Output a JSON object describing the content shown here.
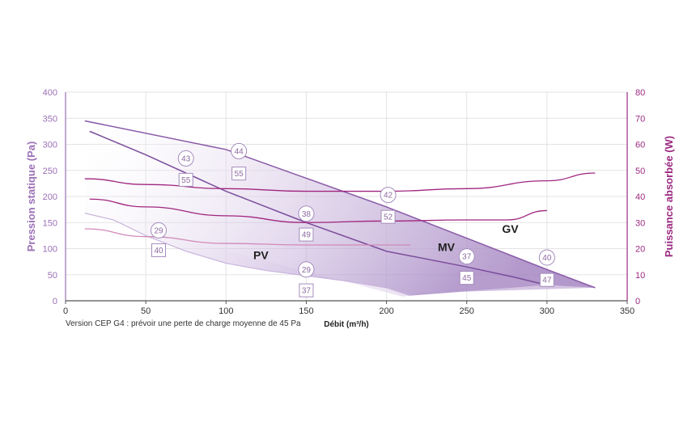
{
  "chart_data": {
    "type": "line",
    "xlabel": "Débit (m³/h)",
    "ylabel_left": "Pression statique (Pa)",
    "ylabel_right": "Puissance absorbée (W)",
    "xlim": [
      0,
      350
    ],
    "ylim_left": [
      0,
      400
    ],
    "ylim_right": [
      0,
      80
    ],
    "x_ticks": [
      "0",
      "50",
      "100",
      "150",
      "200",
      "250",
      "300",
      "350"
    ],
    "y_left_ticks": [
      "0",
      "50",
      "100",
      "150",
      "200",
      "250",
      "300",
      "350",
      "400"
    ],
    "y_right_ticks": [
      "0",
      "10",
      "20",
      "30",
      "40",
      "50",
      "60",
      "70",
      "80"
    ],
    "grid": true,
    "note": "Version CEP G4 : prévoir une perte de charge moyenne de 45 Pa",
    "zones": [
      {
        "label": "PV",
        "label_at": [
          117,
          80
        ]
      },
      {
        "label": "MV",
        "label_at": [
          232,
          95
        ]
      },
      {
        "label": "GV",
        "label_at": [
          272,
          130
        ]
      }
    ],
    "pressure_curves": [
      {
        "zone": "GV",
        "points": [
          [
            12,
            345
          ],
          [
            100,
            290
          ],
          [
            150,
            235
          ],
          [
            200,
            180
          ],
          [
            250,
            120
          ],
          [
            300,
            60
          ],
          [
            330,
            25
          ]
        ]
      },
      {
        "zone": "MV",
        "points": [
          [
            15,
            325
          ],
          [
            50,
            280
          ],
          [
            100,
            210
          ],
          [
            150,
            150
          ],
          [
            200,
            95
          ],
          [
            250,
            65
          ],
          [
            280,
            45
          ],
          [
            300,
            30
          ]
        ]
      },
      {
        "zone": "PV",
        "points": [
          [
            12,
            168
          ],
          [
            30,
            155
          ],
          [
            50,
            125
          ],
          [
            75,
            95
          ],
          [
            100,
            72
          ],
          [
            125,
            58
          ],
          [
            150,
            48
          ],
          [
            175,
            38
          ],
          [
            200,
            25
          ],
          [
            215,
            10
          ]
        ]
      }
    ],
    "power_curves": [
      {
        "zone": "GV",
        "points": [
          [
            12,
            46.8
          ],
          [
            50,
            44.6
          ],
          [
            100,
            43
          ],
          [
            150,
            42
          ],
          [
            200,
            42
          ],
          [
            250,
            43
          ],
          [
            300,
            46
          ],
          [
            330,
            49
          ]
        ]
      },
      {
        "zone": "MV",
        "points": [
          [
            15,
            39
          ],
          [
            50,
            36
          ],
          [
            100,
            32.6
          ],
          [
            150,
            30
          ],
          [
            200,
            30.6
          ],
          [
            250,
            31
          ],
          [
            275,
            31
          ],
          [
            300,
            34.6
          ]
        ]
      },
      {
        "zone": "PV",
        "points": [
          [
            12,
            27.6
          ],
          [
            50,
            24.6
          ],
          [
            100,
            22
          ],
          [
            150,
            21.4
          ],
          [
            200,
            21.4
          ],
          [
            215,
            21.4
          ]
        ]
      }
    ],
    "power_markers": [
      {
        "x": 58,
        "y": 135,
        "label": "29"
      },
      {
        "x": 75,
        "y": 273,
        "label": "43"
      },
      {
        "x": 108,
        "y": 287,
        "label": "44"
      },
      {
        "x": 150,
        "y": 167,
        "label": "38"
      },
      {
        "x": 150,
        "y": 60,
        "label": "29"
      },
      {
        "x": 201,
        "y": 203,
        "label": "42"
      },
      {
        "x": 250,
        "y": 85,
        "label": "37"
      },
      {
        "x": 300,
        "y": 83,
        "label": "40"
      }
    ],
    "noise_markers": [
      {
        "x": 58,
        "y": 97,
        "label": "40"
      },
      {
        "x": 75,
        "y": 232,
        "label": "55"
      },
      {
        "x": 108,
        "y": 244,
        "label": "55"
      },
      {
        "x": 150,
        "y": 127,
        "label": "49"
      },
      {
        "x": 150,
        "y": 20,
        "label": "37"
      },
      {
        "x": 201,
        "y": 161,
        "label": "52"
      },
      {
        "x": 250,
        "y": 44,
        "label": "45"
      },
      {
        "x": 300,
        "y": 40,
        "label": "47"
      }
    ],
    "colors": {
      "left_axis": "#9b6fb5",
      "right_axis": "#9c2a82",
      "pressure_line": "#8a5aa8",
      "power_line": "#a0257f",
      "area_dark": "#a98ac4",
      "grid": "#e3e3e3"
    }
  }
}
